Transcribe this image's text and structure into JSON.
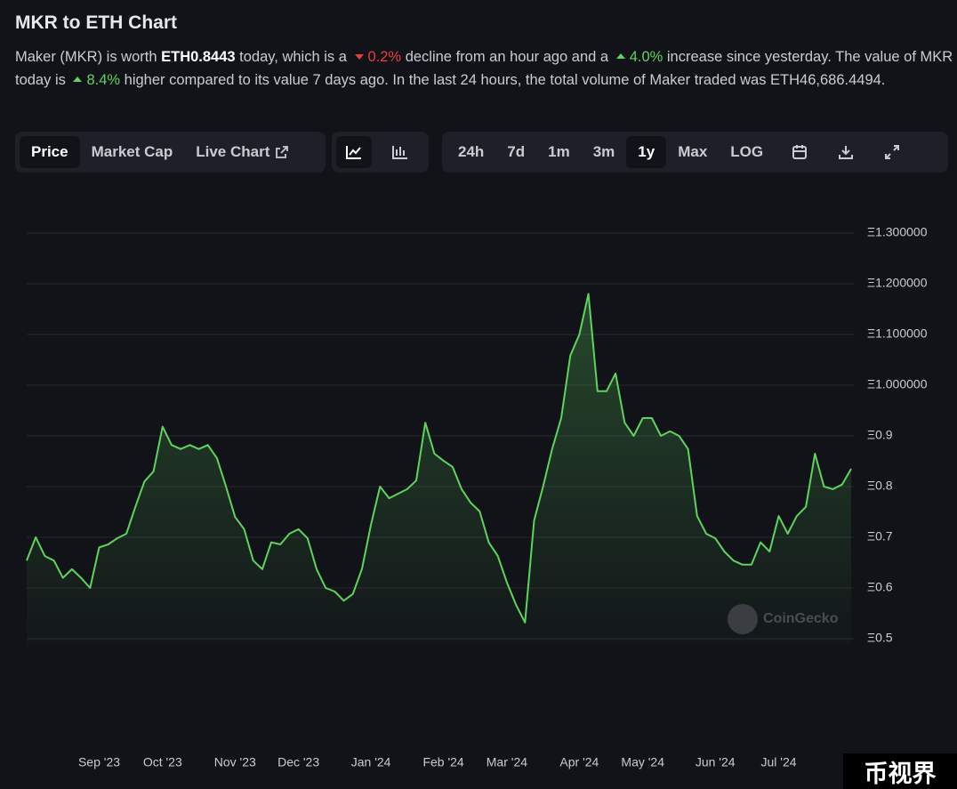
{
  "header": {
    "title": "MKR to ETH Chart",
    "description": [
      {
        "text": "Maker (MKR) is worth ",
        "style": "plain"
      },
      {
        "text": "ETH0.8443",
        "style": "bold"
      },
      {
        "text": " today, which is a ",
        "style": "plain"
      },
      {
        "text": "0.2%",
        "style": "down"
      },
      {
        "text": " decline from an hour ago and a ",
        "style": "plain"
      },
      {
        "text": "4.0%",
        "style": "up"
      },
      {
        "text": " increase since yesterday. The value of MKR today is ",
        "style": "plain"
      },
      {
        "text": "8.4%",
        "style": "up"
      },
      {
        "text": " higher compared to its value 7 days ago. In the last 24 hours, the total volume of Maker traded was ETH46,686.4494.",
        "style": "plain"
      }
    ]
  },
  "toolbar": {
    "tabs": [
      "Price",
      "Market Cap",
      "Live Chart"
    ],
    "ranges": [
      "24h",
      "7d",
      "1m",
      "3m",
      "1y",
      "Max",
      "LOG"
    ],
    "active_tab": 0,
    "active_range": 4
  },
  "watermark": "CoinGecko",
  "badge": "币视界",
  "chart_data": {
    "type": "line",
    "color": "#5fd35f",
    "categories": [
      null,
      null,
      null,
      null,
      null,
      null,
      null,
      null,
      "Sep '23",
      null,
      null,
      null,
      null,
      null,
      null,
      "Oct '23",
      null,
      null,
      null,
      null,
      null,
      null,
      null,
      "Nov '23",
      null,
      null,
      null,
      null,
      null,
      null,
      "Dec '23",
      null,
      null,
      null,
      null,
      null,
      null,
      null,
      "Jan '24",
      null,
      null,
      null,
      null,
      null,
      null,
      null,
      "Feb '24",
      null,
      null,
      null,
      null,
      null,
      null,
      "Mar '24",
      null,
      null,
      null,
      null,
      null,
      null,
      null,
      "Apr '24",
      null,
      null,
      null,
      null,
      null,
      null,
      "May '24",
      null,
      null,
      null,
      null,
      null,
      null,
      null,
      "Jun '24",
      null,
      null,
      null,
      null,
      null,
      null,
      "Jul '24",
      null,
      null,
      null,
      null,
      null,
      null,
      null,
      null
    ],
    "values": [
      0.654,
      0.7,
      0.663,
      0.654,
      0.62,
      0.637,
      0.62,
      0.6,
      0.68,
      0.686,
      0.698,
      0.707,
      0.76,
      0.81,
      0.83,
      0.918,
      0.882,
      0.874,
      0.882,
      0.874,
      0.882,
      0.856,
      0.8,
      0.74,
      0.716,
      0.654,
      0.637,
      0.69,
      0.686,
      0.707,
      0.716,
      0.698,
      0.637,
      0.6,
      0.593,
      0.575,
      0.588,
      0.637,
      0.725,
      0.8,
      0.777,
      0.786,
      0.795,
      0.812,
      0.926,
      0.865,
      0.851,
      0.839,
      0.795,
      0.768,
      0.751,
      0.69,
      0.663,
      0.611,
      0.567,
      0.532,
      0.733,
      0.8,
      0.874,
      0.935,
      1.058,
      1.1,
      1.18,
      0.988,
      0.988,
      1.023,
      0.926,
      0.9,
      0.935,
      0.935,
      0.9,
      0.909,
      0.9,
      0.874,
      0.742,
      0.707,
      0.698,
      0.672,
      0.654,
      0.646,
      0.646,
      0.69,
      0.672,
      0.742,
      0.707,
      0.742,
      0.76,
      0.865,
      0.8,
      0.795,
      0.804,
      0.835
    ],
    "ylim": [
      0.5,
      1.3
    ],
    "yticks": [
      {
        "value": 0.5,
        "label": "Ξ0.5"
      },
      {
        "value": 0.6,
        "label": "Ξ0.6"
      },
      {
        "value": 0.7,
        "label": "Ξ0.7"
      },
      {
        "value": 0.8,
        "label": "Ξ0.8"
      },
      {
        "value": 0.9,
        "label": "Ξ0.9"
      },
      {
        "value": 1.0,
        "label": "Ξ1.000000"
      },
      {
        "value": 1.1,
        "label": "Ξ1.100000"
      },
      {
        "value": 1.2,
        "label": "Ξ1.200000"
      },
      {
        "value": 1.3,
        "label": "Ξ1.300000"
      }
    ],
    "grid": true
  }
}
